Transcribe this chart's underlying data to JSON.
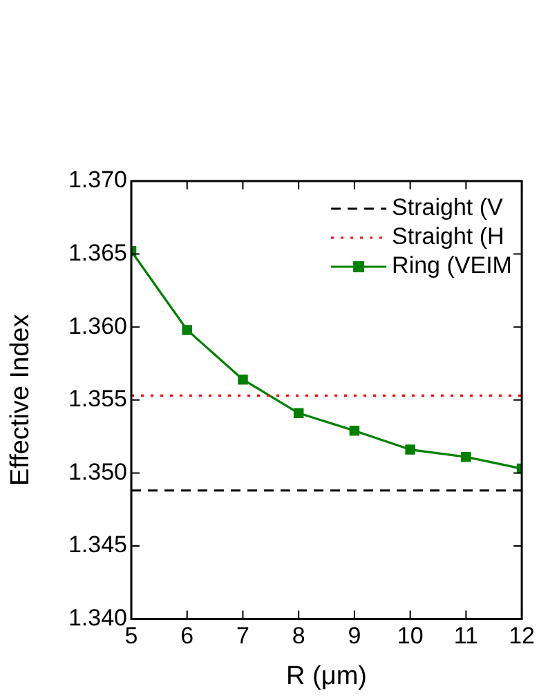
{
  "chart_data": {
    "type": "line",
    "xlabel": "R (μm)",
    "ylabel": "Effective Index",
    "x": [
      5,
      6,
      7,
      8,
      9,
      10,
      11,
      12
    ],
    "series": [
      {
        "name": "Ring (VEIM",
        "color": "#008000",
        "values": [
          1.3652,
          1.3598,
          1.3564,
          1.3541,
          1.3529,
          1.3516,
          1.3511,
          1.3503
        ],
        "line_style": "solid",
        "marker": "square"
      }
    ],
    "ref_lines": [
      {
        "axis": "y",
        "value": 1.3488,
        "label": "Straight (V",
        "color": "#000000",
        "line_style": "dashed"
      },
      {
        "axis": "y",
        "value": 1.3553,
        "label": "Straight (H",
        "color": "#ff0000",
        "line_style": "dotted"
      }
    ],
    "xlim": [
      5,
      12
    ],
    "xticks": [
      5,
      6,
      7,
      8,
      9,
      10,
      11,
      12
    ],
    "ylim": [
      1.34,
      1.37
    ],
    "yticks": [
      {
        "value": 1.34,
        "label": "1.340"
      },
      {
        "value": 1.345,
        "label": "1.345"
      },
      {
        "value": 1.35,
        "label": "1.350"
      },
      {
        "value": 1.355,
        "label": "1.355"
      },
      {
        "value": 1.36,
        "label": "1.360"
      },
      {
        "value": 1.365,
        "label": "1.365"
      },
      {
        "value": 1.37,
        "label": "1.370"
      }
    ],
    "grid": false,
    "legend": "top right"
  }
}
